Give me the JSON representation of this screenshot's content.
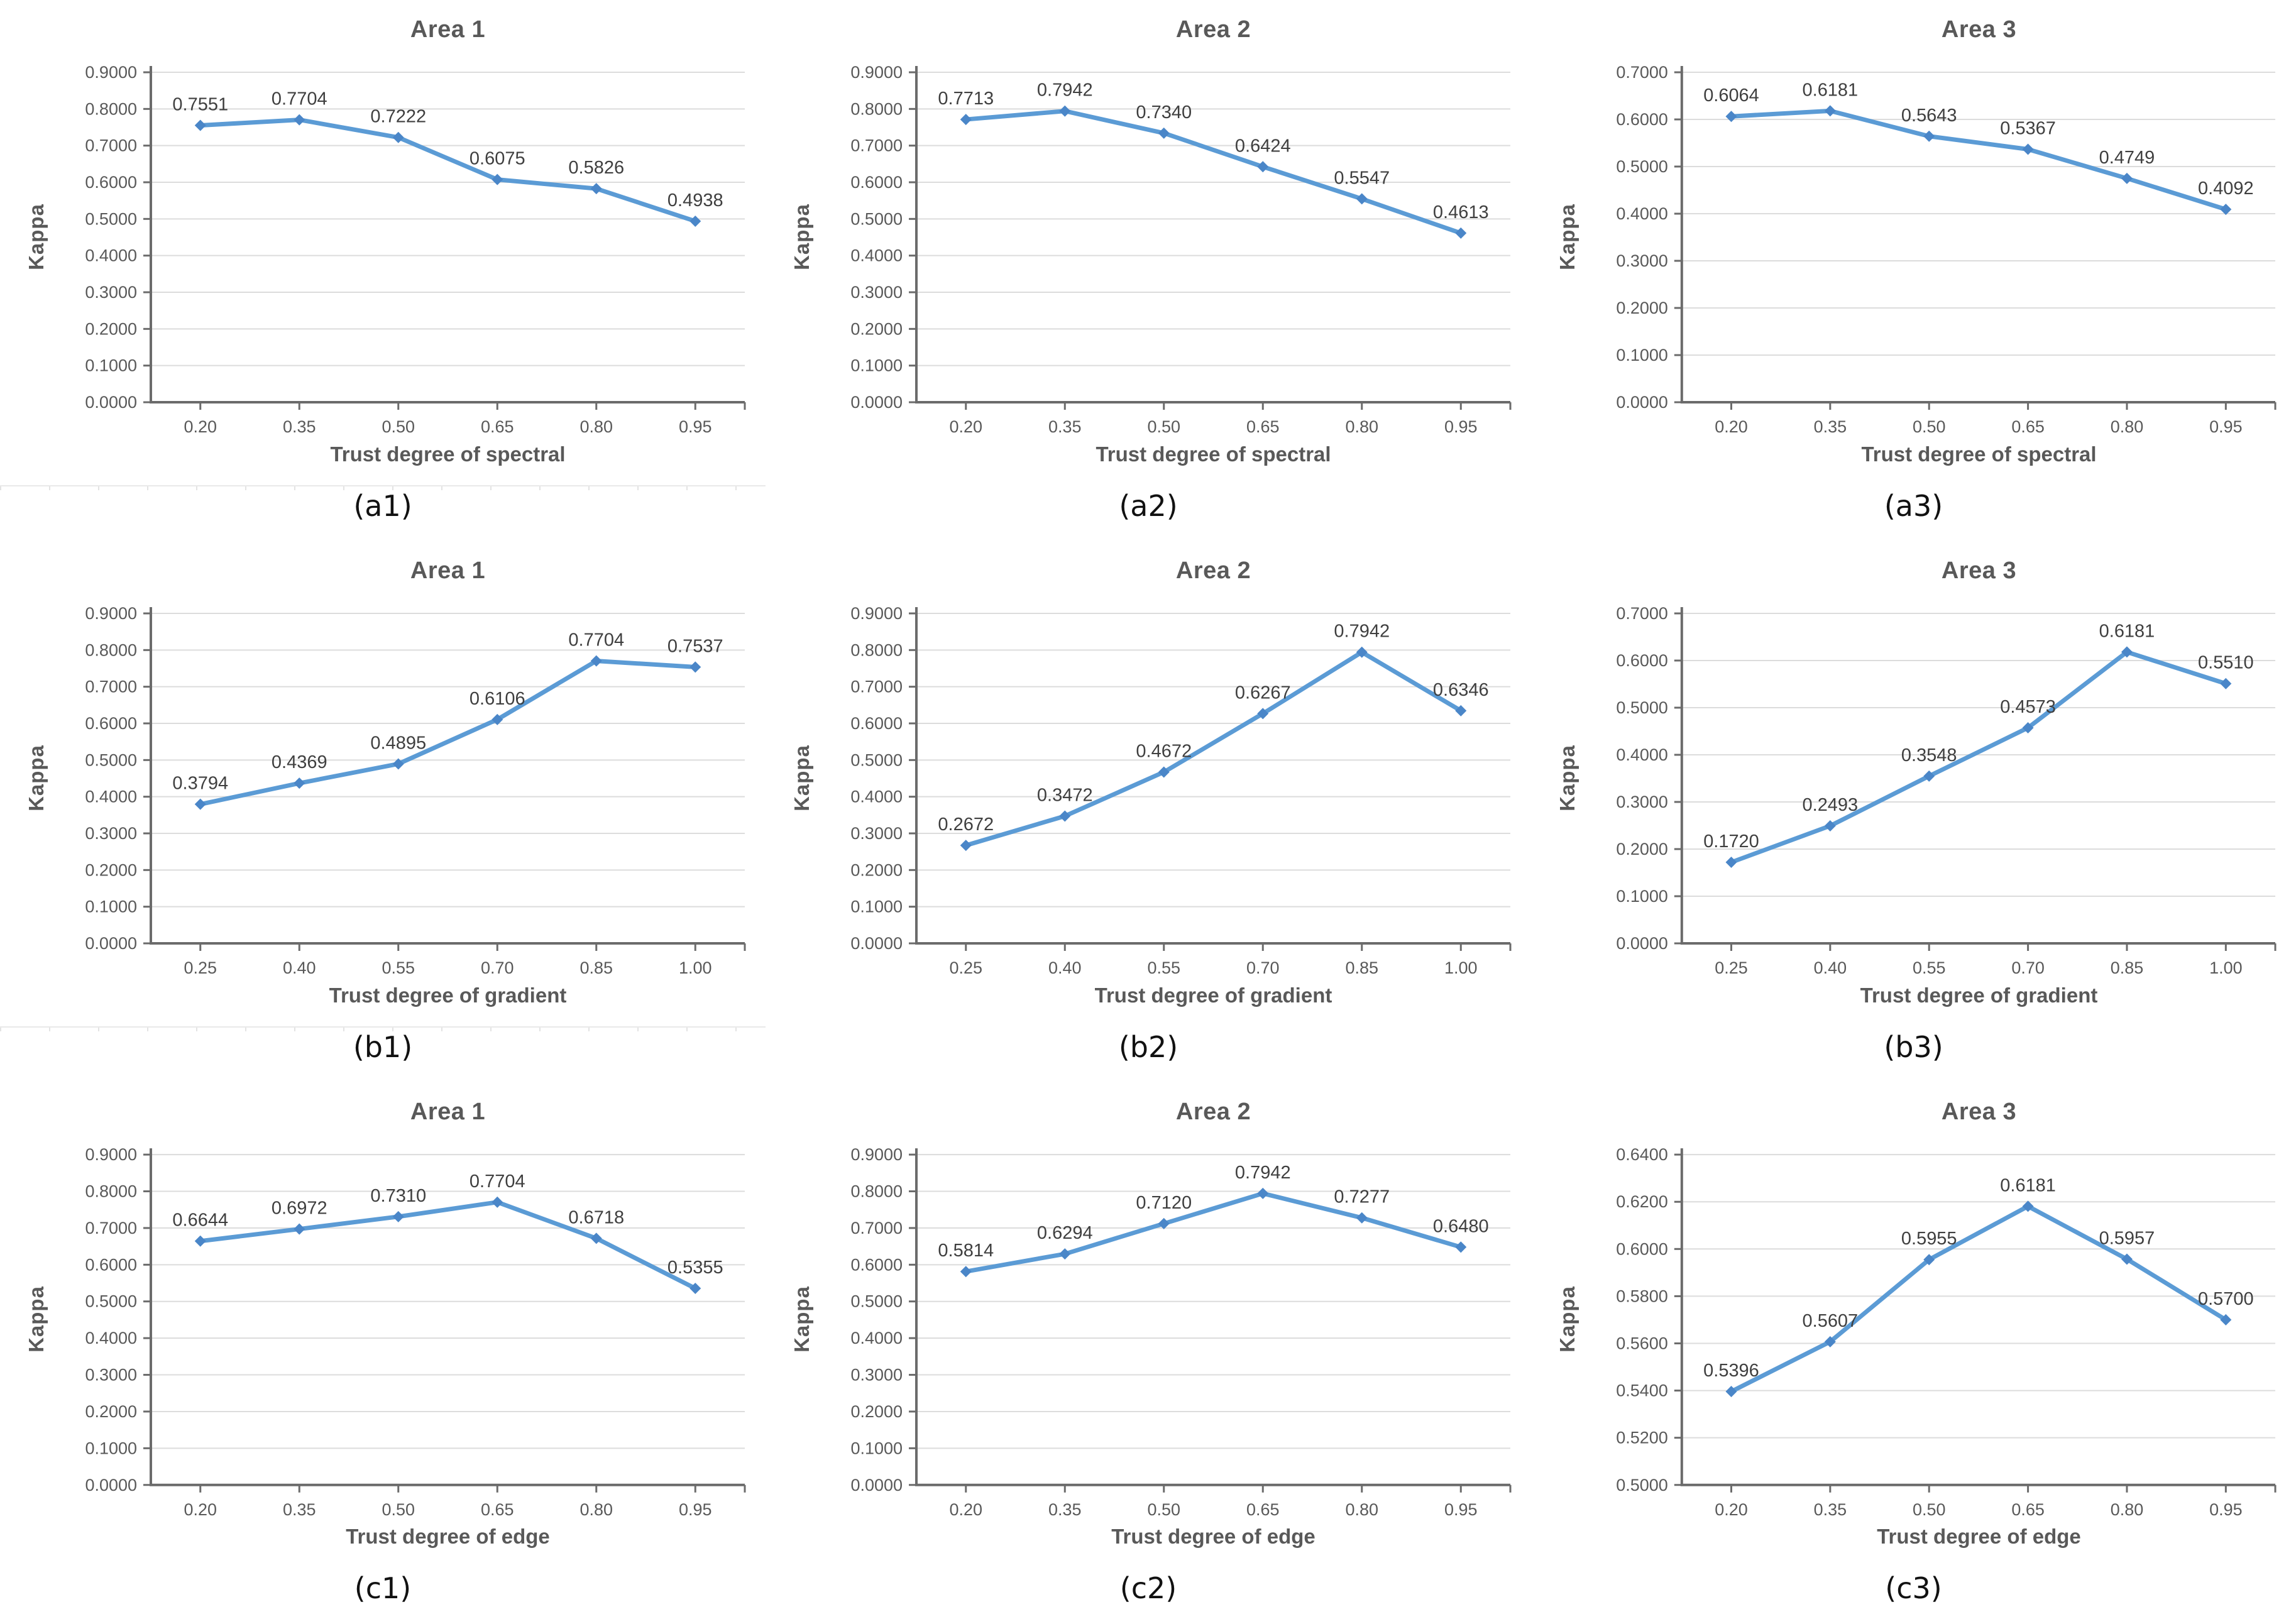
{
  "figure": {
    "ylabel": "Kappa",
    "style": {
      "line_color": "#5B9BD5",
      "marker_color": "#4A86C8",
      "grid_color": "#DCDCDC",
      "axis_color": "#6B6B6B",
      "tick_text_color": "#595959",
      "point_label_color": "#3F3F3F",
      "title_color": "#595959",
      "caption_color": "#111111"
    }
  },
  "chart_data": [
    {
      "id": "a1",
      "type": "line",
      "title": "Area 1",
      "caption": "(a1)",
      "xlabel": "Trust degree of spectral",
      "ylabel": "Kappa",
      "x_tick_labels": [
        "0.20",
        "0.35",
        "0.50",
        "0.65",
        "0.80",
        "0.95"
      ],
      "x": [
        0.2,
        0.35,
        0.5,
        0.65,
        0.8,
        0.95
      ],
      "values": [
        0.7551,
        0.7704,
        0.7222,
        0.6075,
        0.5826,
        0.4938
      ],
      "point_labels": [
        "0.7551",
        "0.7704",
        "0.7222",
        "0.6075",
        "0.5826",
        "0.4938"
      ],
      "ylim": [
        0.0,
        0.9
      ],
      "y_step": 0.1,
      "y_tick_labels": [
        "0.0000",
        "0.1000",
        "0.2000",
        "0.3000",
        "0.4000",
        "0.5000",
        "0.6000",
        "0.7000",
        "0.8000",
        "0.9000"
      ],
      "grid": true,
      "legend": false,
      "divider_below": true
    },
    {
      "id": "a2",
      "type": "line",
      "title": "Area 2",
      "caption": "(a2)",
      "xlabel": "Trust degree of spectral",
      "ylabel": "Kappa",
      "x_tick_labels": [
        "0.20",
        "0.35",
        "0.50",
        "0.65",
        "0.80",
        "0.95"
      ],
      "x": [
        0.2,
        0.35,
        0.5,
        0.65,
        0.8,
        0.95
      ],
      "values": [
        0.7713,
        0.7942,
        0.734,
        0.6424,
        0.5547,
        0.4613
      ],
      "point_labels": [
        "0.7713",
        "0.7942",
        "0.7340",
        "0.6424",
        "0.5547",
        "0.4613"
      ],
      "ylim": [
        0.0,
        0.9
      ],
      "y_step": 0.1,
      "y_tick_labels": [
        "0.0000",
        "0.1000",
        "0.2000",
        "0.3000",
        "0.4000",
        "0.5000",
        "0.6000",
        "0.7000",
        "0.8000",
        "0.9000"
      ],
      "grid": true,
      "legend": false,
      "divider_below": false
    },
    {
      "id": "a3",
      "type": "line",
      "title": "Area 3",
      "caption": "(a3)",
      "xlabel": "Trust degree of spectral",
      "ylabel": "Kappa",
      "x_tick_labels": [
        "0.20",
        "0.35",
        "0.50",
        "0.65",
        "0.80",
        "0.95"
      ],
      "x": [
        0.2,
        0.35,
        0.5,
        0.65,
        0.8,
        0.95
      ],
      "values": [
        0.6064,
        0.6181,
        0.5643,
        0.5367,
        0.4749,
        0.4092
      ],
      "point_labels": [
        "0.6064",
        "0.6181",
        "0.5643",
        "0.5367",
        "0.4749",
        "0.4092"
      ],
      "ylim": [
        0.0,
        0.7
      ],
      "y_step": 0.1,
      "y_tick_labels": [
        "0.0000",
        "0.1000",
        "0.2000",
        "0.3000",
        "0.4000",
        "0.5000",
        "0.6000",
        "0.7000"
      ],
      "grid": true,
      "legend": false,
      "divider_below": false
    },
    {
      "id": "b1",
      "type": "line",
      "title": "Area 1",
      "caption": "(b1)",
      "xlabel": "Trust degree of gradient",
      "ylabel": "Kappa",
      "x_tick_labels": [
        "0.25",
        "0.40",
        "0.55",
        "0.70",
        "0.85",
        "1.00"
      ],
      "x": [
        0.25,
        0.4,
        0.55,
        0.7,
        0.85,
        1.0
      ],
      "values": [
        0.3794,
        0.4369,
        0.4895,
        0.6106,
        0.7704,
        0.7537
      ],
      "point_labels": [
        "0.3794",
        "0.4369",
        "0.4895",
        "0.6106",
        "0.7704",
        "0.7537"
      ],
      "ylim": [
        0.0,
        0.9
      ],
      "y_step": 0.1,
      "y_tick_labels": [
        "0.0000",
        "0.1000",
        "0.2000",
        "0.3000",
        "0.4000",
        "0.5000",
        "0.6000",
        "0.7000",
        "0.8000",
        "0.9000"
      ],
      "grid": true,
      "legend": false,
      "divider_below": true
    },
    {
      "id": "b2",
      "type": "line",
      "title": "Area 2",
      "caption": "(b2)",
      "xlabel": "Trust degree of gradient",
      "ylabel": "Kappa",
      "x_tick_labels": [
        "0.25",
        "0.40",
        "0.55",
        "0.70",
        "0.85",
        "1.00"
      ],
      "x": [
        0.25,
        0.4,
        0.55,
        0.7,
        0.85,
        1.0
      ],
      "values": [
        0.2672,
        0.3472,
        0.4672,
        0.6267,
        0.7942,
        0.6346
      ],
      "point_labels": [
        "0.2672",
        "0.3472",
        "0.4672",
        "0.6267",
        "0.7942",
        "0.6346"
      ],
      "ylim": [
        0.0,
        0.9
      ],
      "y_step": 0.1,
      "y_tick_labels": [
        "0.0000",
        "0.1000",
        "0.2000",
        "0.3000",
        "0.4000",
        "0.5000",
        "0.6000",
        "0.7000",
        "0.8000",
        "0.9000"
      ],
      "grid": true,
      "legend": false,
      "divider_below": false
    },
    {
      "id": "b3",
      "type": "line",
      "title": "Area 3",
      "caption": "(b3)",
      "xlabel": "Trust degree of gradient",
      "ylabel": "Kappa",
      "x_tick_labels": [
        "0.25",
        "0.40",
        "0.55",
        "0.70",
        "0.85",
        "1.00"
      ],
      "x": [
        0.25,
        0.4,
        0.55,
        0.7,
        0.85,
        1.0
      ],
      "values": [
        0.172,
        0.2493,
        0.3548,
        0.4573,
        0.6181,
        0.551
      ],
      "point_labels": [
        "0.1720",
        "0.2493",
        "0.3548",
        "0.4573",
        "0.6181",
        "0.5510"
      ],
      "ylim": [
        0.0,
        0.7
      ],
      "y_step": 0.1,
      "y_tick_labels": [
        "0.0000",
        "0.1000",
        "0.2000",
        "0.3000",
        "0.4000",
        "0.5000",
        "0.6000",
        "0.7000"
      ],
      "grid": true,
      "legend": false,
      "divider_below": false
    },
    {
      "id": "c1",
      "type": "line",
      "title": "Area 1",
      "caption": "(c1)",
      "xlabel": "Trust degree of edge",
      "ylabel": "Kappa",
      "x_tick_labels": [
        "0.20",
        "0.35",
        "0.50",
        "0.65",
        "0.80",
        "0.95"
      ],
      "x": [
        0.2,
        0.35,
        0.5,
        0.65,
        0.8,
        0.95
      ],
      "values": [
        0.6644,
        0.6972,
        0.731,
        0.7704,
        0.6718,
        0.5355
      ],
      "point_labels": [
        "0.6644",
        "0.6972",
        "0.7310",
        "0.7704",
        "0.6718",
        "0.5355"
      ],
      "ylim": [
        0.0,
        0.9
      ],
      "y_step": 0.1,
      "y_tick_labels": [
        "0.0000",
        "0.1000",
        "0.2000",
        "0.3000",
        "0.4000",
        "0.5000",
        "0.6000",
        "0.7000",
        "0.8000",
        "0.9000"
      ],
      "grid": true,
      "legend": false,
      "divider_below": false
    },
    {
      "id": "c2",
      "type": "line",
      "title": "Area 2",
      "caption": "(c2)",
      "xlabel": "Trust degree of edge",
      "ylabel": "Kappa",
      "x_tick_labels": [
        "0.20",
        "0.35",
        "0.50",
        "0.65",
        "0.80",
        "0.95"
      ],
      "x": [
        0.2,
        0.35,
        0.5,
        0.65,
        0.8,
        0.95
      ],
      "values": [
        0.5814,
        0.6294,
        0.712,
        0.7942,
        0.7277,
        0.648
      ],
      "point_labels": [
        "0.5814",
        "0.6294",
        "0.7120",
        "0.7942",
        "0.7277",
        "0.6480"
      ],
      "ylim": [
        0.0,
        0.9
      ],
      "y_step": 0.1,
      "y_tick_labels": [
        "0.0000",
        "0.1000",
        "0.2000",
        "0.3000",
        "0.4000",
        "0.5000",
        "0.6000",
        "0.7000",
        "0.8000",
        "0.9000"
      ],
      "grid": true,
      "legend": false,
      "divider_below": false
    },
    {
      "id": "c3",
      "type": "line",
      "title": "Area 3",
      "caption": "(c3)",
      "xlabel": "Trust degree of edge",
      "ylabel": "Kappa",
      "x_tick_labels": [
        "0.20",
        "0.35",
        "0.50",
        "0.65",
        "0.80",
        "0.95"
      ],
      "x": [
        0.2,
        0.35,
        0.5,
        0.65,
        0.8,
        0.95
      ],
      "values": [
        0.5396,
        0.5607,
        0.5955,
        0.6181,
        0.5957,
        0.57
      ],
      "point_labels": [
        "0.5396",
        "0.5607",
        "0.5955",
        "0.6181",
        "0.5957",
        "0.5700"
      ],
      "ylim": [
        0.5,
        0.64
      ],
      "y_step": 0.02,
      "y_tick_labels": [
        "0.5000",
        "0.5200",
        "0.5400",
        "0.5600",
        "0.5800",
        "0.6000",
        "0.6200",
        "0.6400"
      ],
      "grid": true,
      "legend": false,
      "divider_below": false
    }
  ]
}
